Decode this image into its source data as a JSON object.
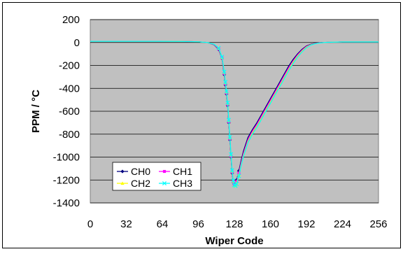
{
  "chart_data": {
    "type": "line",
    "title": "",
    "xlabel": "Wiper Code",
    "ylabel": "PPM / °C",
    "xlim": [
      0,
      256
    ],
    "ylim": [
      -1400,
      200
    ],
    "xticks": [
      "0",
      "32",
      "64",
      "96",
      "128",
      "160",
      "192",
      "224",
      "256"
    ],
    "yticks": [
      "200",
      "0",
      "-200",
      "-400",
      "-600",
      "-800",
      "-1000",
      "-1200",
      "-1400"
    ],
    "grid": true,
    "legend_position": "bottom-left",
    "plot_background": "#c0c0c0",
    "series": [
      {
        "name": "CH0",
        "color": "#000080",
        "marker": "diamond",
        "x": [
          0,
          20,
          40,
          60,
          80,
          96,
          104,
          110,
          114,
          117,
          119,
          120,
          121,
          122,
          123,
          124,
          125,
          126,
          127,
          128,
          129,
          130,
          132,
          134,
          136,
          140,
          144,
          148,
          152,
          156,
          160,
          164,
          168,
          172,
          176,
          180,
          184,
          188,
          192,
          196,
          200,
          204,
          208,
          212,
          216,
          220,
          224,
          232,
          240,
          248,
          256
        ],
        "y": [
          10,
          10,
          10,
          10,
          9,
          6,
          0,
          -20,
          -60,
          -140,
          -280,
          -370,
          -450,
          -550,
          -700,
          -850,
          -1000,
          -1140,
          -1220,
          -1240,
          -1230,
          -1200,
          -1120,
          -1030,
          -950,
          -830,
          -760,
          -700,
          -630,
          -560,
          -490,
          -420,
          -350,
          -280,
          -210,
          -150,
          -100,
          -60,
          -30,
          -15,
          -6,
          -2,
          0,
          2,
          3,
          4,
          5,
          5,
          5,
          5,
          5
        ]
      },
      {
        "name": "CH1",
        "color": "#ff00ff",
        "marker": "square",
        "x": [
          0,
          20,
          40,
          60,
          80,
          96,
          104,
          110,
          114,
          117,
          119,
          120,
          121,
          122,
          123,
          124,
          125,
          126,
          127,
          128,
          129,
          130,
          132,
          134,
          136,
          140,
          144,
          148,
          152,
          156,
          160,
          164,
          168,
          172,
          176,
          180,
          184,
          188,
          192,
          196,
          200,
          204,
          208,
          212,
          216,
          220,
          224,
          232,
          240,
          248,
          256
        ],
        "y": [
          10,
          10,
          10,
          10,
          9,
          6,
          0,
          -18,
          -55,
          -135,
          -270,
          -360,
          -440,
          -540,
          -690,
          -840,
          -990,
          -1130,
          -1215,
          -1245,
          -1240,
          -1215,
          -1140,
          -1050,
          -970,
          -850,
          -775,
          -715,
          -645,
          -575,
          -505,
          -435,
          -365,
          -295,
          -225,
          -165,
          -110,
          -68,
          -35,
          -18,
          -8,
          -3,
          0,
          2,
          3,
          4,
          5,
          5,
          5,
          5,
          5
        ]
      },
      {
        "name": "CH2",
        "color": "#ffff00",
        "marker": "triangle",
        "x": [
          0,
          20,
          40,
          60,
          80,
          96,
          104,
          110,
          114,
          117,
          119,
          120,
          121,
          122,
          123,
          124,
          125,
          126,
          127,
          128,
          129,
          130,
          132,
          134,
          136,
          140,
          144,
          148,
          152,
          156,
          160,
          164,
          168,
          172,
          176,
          180,
          184,
          188,
          192,
          196,
          200,
          204,
          208,
          212,
          216,
          220,
          224,
          232,
          240,
          248,
          256
        ],
        "y": [
          10,
          10,
          10,
          10,
          9,
          6,
          0,
          -16,
          -50,
          -130,
          -260,
          -350,
          -430,
          -530,
          -680,
          -830,
          -980,
          -1120,
          -1210,
          -1250,
          -1245,
          -1225,
          -1155,
          -1065,
          -985,
          -865,
          -790,
          -730,
          -660,
          -590,
          -520,
          -450,
          -380,
          -310,
          -240,
          -175,
          -120,
          -75,
          -40,
          -20,
          -9,
          -4,
          0,
          2,
          3,
          4,
          5,
          5,
          5,
          5,
          5
        ]
      },
      {
        "name": "CH3",
        "color": "#00ffff",
        "marker": "x",
        "x": [
          0,
          20,
          40,
          60,
          80,
          96,
          104,
          110,
          114,
          117,
          119,
          120,
          121,
          122,
          123,
          124,
          125,
          126,
          127,
          128,
          129,
          130,
          132,
          134,
          136,
          140,
          144,
          148,
          152,
          156,
          160,
          164,
          168,
          172,
          176,
          180,
          184,
          188,
          192,
          196,
          200,
          204,
          208,
          212,
          216,
          220,
          224,
          232,
          240,
          248,
          256
        ],
        "y": [
          10,
          10,
          10,
          10,
          9,
          6,
          0,
          -15,
          -48,
          -125,
          -255,
          -345,
          -425,
          -525,
          -675,
          -825,
          -975,
          -1115,
          -1205,
          -1245,
          -1250,
          -1235,
          -1165,
          -1075,
          -995,
          -875,
          -800,
          -740,
          -670,
          -600,
          -530,
          -460,
          -390,
          -320,
          -250,
          -185,
          -128,
          -82,
          -45,
          -22,
          -10,
          -4,
          0,
          2,
          3,
          4,
          5,
          5,
          5,
          5,
          5
        ]
      }
    ]
  }
}
